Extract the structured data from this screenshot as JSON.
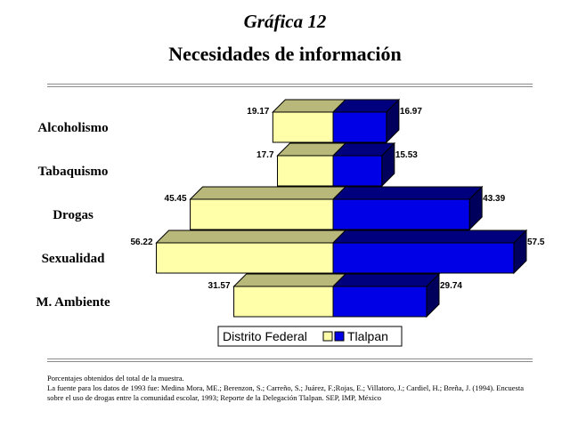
{
  "header": {
    "subtitle": "Gráfica 12",
    "title": "Necesidades de información"
  },
  "chart_data": {
    "type": "bar",
    "orientation": "horizontal-butterfly",
    "categories": [
      "Alcoholismo",
      "Tabaquismo",
      "Drogas",
      "Sexualidad",
      "M. Ambiente"
    ],
    "series": [
      {
        "name": "Distrito Federal",
        "values": [
          19.17,
          17.7,
          45.45,
          56.22,
          31.57
        ],
        "color": "#ffffaa",
        "side": "left"
      },
      {
        "name": "Tlalpan",
        "values": [
          16.97,
          15.53,
          43.39,
          57.5,
          29.74
        ],
        "color": "#0000e6",
        "side": "right"
      }
    ],
    "legend_position": "bottom-center",
    "style": "3d"
  },
  "footnote": {
    "line1": "Porcentajes obtenidos del total de la muestra.",
    "line2": "La fuente para los datos de 1993 fue: Medina Mora, ME.; Berenzon, S.; Carreño, S.; Juárez, F.;Rojas, E.; Villatoro, J.; Cardiel, H.; Breña, J. (1994). Encuesta",
    "line3": "sobre el uso de drogas entre la comunidad escolar, 1993; Reporte de la Delegación Tlalpan. SEP, IMP, México"
  }
}
